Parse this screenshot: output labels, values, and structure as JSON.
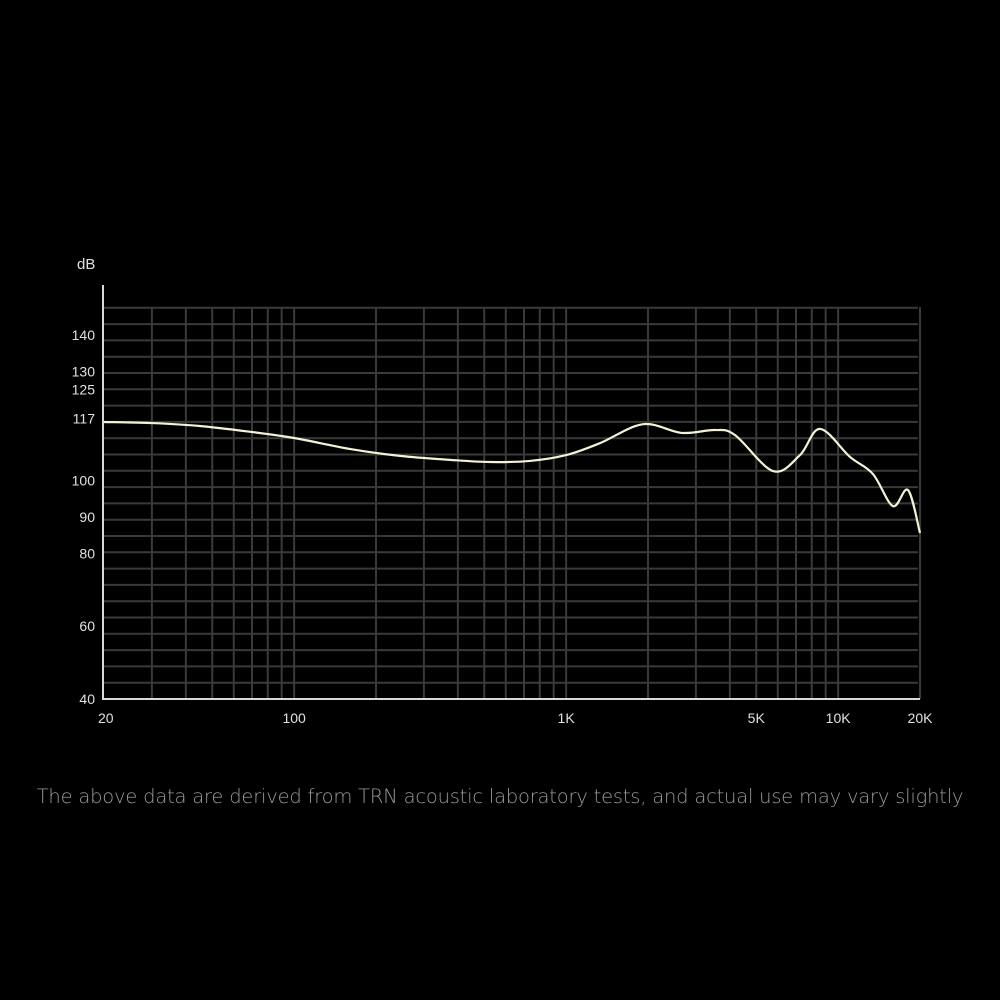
{
  "chart_data": {
    "type": "line",
    "title": "",
    "ylabel": "dB",
    "xlabel": "",
    "xscale": "log",
    "xlim": [
      20,
      20000
    ],
    "ylim": [
      40,
      154
    ],
    "grid": true,
    "x_ticks": [
      {
        "value": 20,
        "label": "20"
      },
      {
        "value": 100,
        "label": "100"
      },
      {
        "value": 1000,
        "label": "1K"
      },
      {
        "value": 5000,
        "label": "5K"
      },
      {
        "value": 10000,
        "label": "10K"
      },
      {
        "value": 20000,
        "label": "20K"
      }
    ],
    "y_ticks": [
      {
        "value": 140,
        "label": "140"
      },
      {
        "value": 130,
        "label": "130"
      },
      {
        "value": 125,
        "label": "125"
      },
      {
        "value": 117,
        "label": "117"
      },
      {
        "value": 100,
        "label": "100"
      },
      {
        "value": 90,
        "label": "90"
      },
      {
        "value": 80,
        "label": "80"
      },
      {
        "value": 60,
        "label": "60"
      },
      {
        "value": 40,
        "label": "40"
      }
    ],
    "series": [
      {
        "color": "#f4f1d6",
        "x": [
          20,
          30,
          45,
          69,
          100,
          160,
          245,
          374,
          525,
          736,
          1000,
          1333,
          1918,
          2660,
          3525,
          4180,
          5770,
          7240,
          8580,
          11060,
          13430,
          15900,
          18070,
          20000
        ],
        "y": [
          116.1,
          115.8,
          115.0,
          113.4,
          111.7,
          108.7,
          106.8,
          105.7,
          105.1,
          105.4,
          107.0,
          110.3,
          115.5,
          113.1,
          113.9,
          112.5,
          102.6,
          107.0,
          114.2,
          106.5,
          101.8,
          93.0,
          97.4,
          85.6
        ]
      }
    ]
  },
  "caption": "The above data are derived from TRN acoustic laboratory tests, and actual use may vary slightly"
}
